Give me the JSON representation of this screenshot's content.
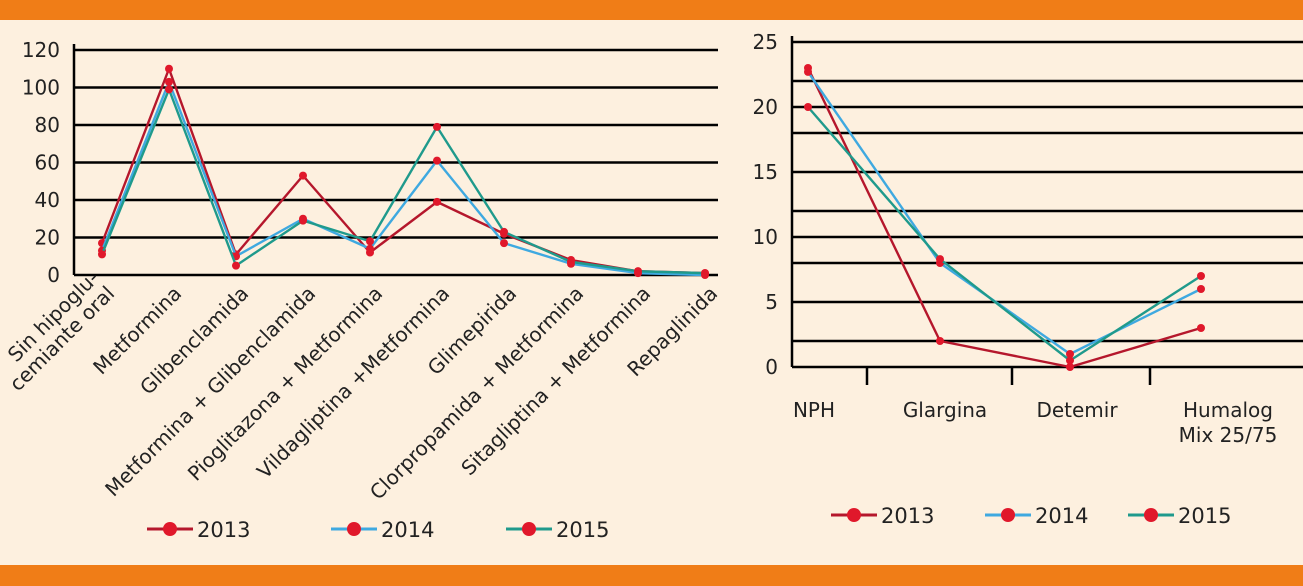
{
  "colors": {
    "band": "#f07d17",
    "background": "#fdf0df",
    "grid": "#000000",
    "point": "#e0182b"
  },
  "chart_data": [
    {
      "type": "line",
      "categories": [
        [
          "Sin hipoglu-",
          "cemiante oral"
        ],
        [
          "Metformina"
        ],
        [
          "Glibenclamida"
        ],
        [
          "Metformina + Glibenclamida"
        ],
        [
          "Pioglitazona + Metformina"
        ],
        [
          "Vildagliptina +Metformina"
        ],
        [
          "Glimepirida"
        ],
        [
          "Clorpropamida + Metformina"
        ],
        [
          "Sitagliptina + Metformina"
        ],
        [
          "Repaglinida"
        ]
      ],
      "ylim": [
        0,
        120
      ],
      "yticks": [
        "0",
        "20",
        "40",
        "60",
        "80",
        "100",
        "120"
      ],
      "grid": true,
      "legend_position": "bottom",
      "series": [
        {
          "name": "2013",
          "color": "#b5172c",
          "values": [
            17,
            110,
            11,
            53,
            12,
            39,
            22,
            8,
            2,
            1
          ]
        },
        {
          "name": "2014",
          "color": "#3fa9e0",
          "values": [
            13,
            103,
            10,
            30,
            14,
            61,
            17,
            6,
            1,
            0
          ]
        },
        {
          "name": "2015",
          "color": "#1f9a8c",
          "values": [
            11,
            99,
            5,
            29,
            18,
            79,
            23,
            7,
            2,
            1
          ]
        }
      ]
    },
    {
      "type": "line",
      "categories": [
        [
          "NPH"
        ],
        [
          "Glargina"
        ],
        [
          "Detemir"
        ],
        [
          "Humalog",
          "Mix 25/75"
        ]
      ],
      "ylim": [
        0,
        25
      ],
      "yticks": [
        "0",
        "5",
        "10",
        "15",
        "20",
        "25"
      ],
      "grid": true,
      "legend_position": "bottom",
      "series": [
        {
          "name": "2013",
          "color": "#b5172c",
          "values": [
            23,
            2,
            0,
            3
          ]
        },
        {
          "name": "2014",
          "color": "#3fa9e0",
          "values": [
            22.7,
            8,
            1,
            6
          ]
        },
        {
          "name": "2015",
          "color": "#1f9a8c",
          "values": [
            20,
            8.3,
            0.5,
            7
          ]
        }
      ]
    }
  ]
}
